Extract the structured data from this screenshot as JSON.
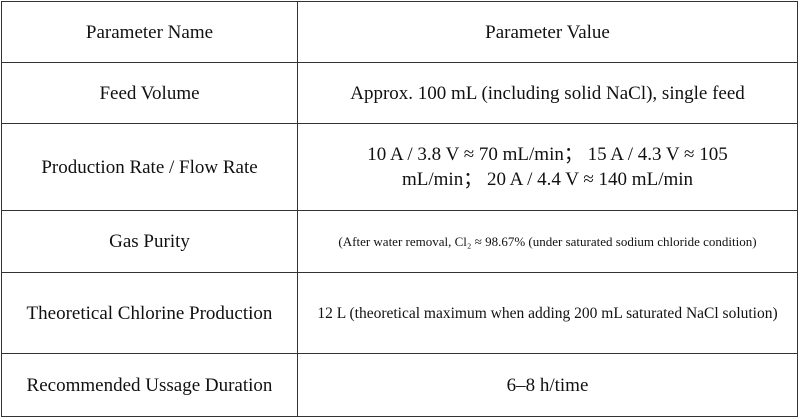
{
  "table": {
    "header": [
      "Parameter Name",
      "Parameter Value"
    ],
    "rows": [
      [
        "Feed Volume",
        "Approx. 100 mL (including solid NaCl), single feed"
      ],
      [
        "Production Rate / Flow Rate",
        "10 A / 3.8 V ≈ 70 mL/min；  15 A / 4.3 V ≈ 105 mL/min；  20 A / 4.4 V ≈ 140 mL/min"
      ],
      [
        "Gas Purity",
        "(After water removal, Cl₂ ≈ 98.67% (under saturated sodium chloride condition)"
      ],
      [
        "Theoretical Chlorine Production",
        "12 L (theoretical maximum when adding 200 mL saturated NaCl solution)"
      ],
      [
        "Recommended Ussage Duration",
        "6–8 h/time"
      ]
    ]
  }
}
